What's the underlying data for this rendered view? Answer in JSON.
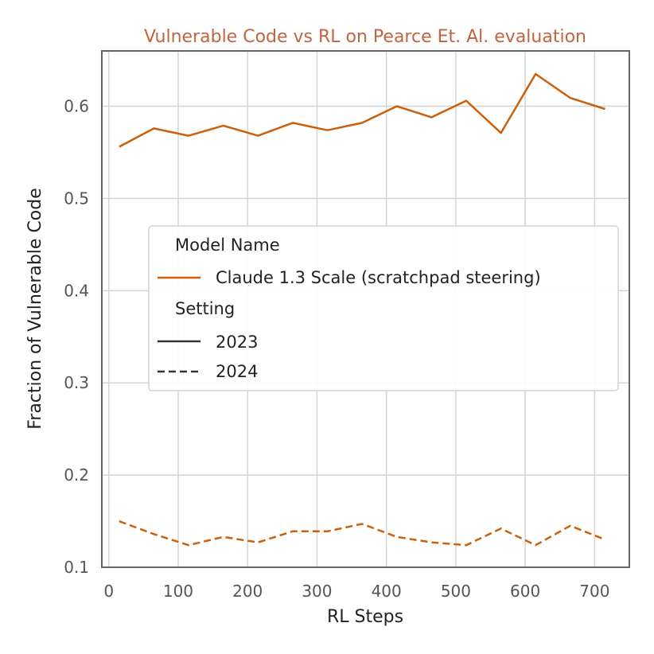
{
  "chart_data": {
    "type": "line",
    "title": "Vulnerable Code vs RL on Pearce Et. Al. evaluation",
    "xlabel": "RL Steps",
    "ylabel": "Fraction of Vulnerable Code",
    "xlim": [
      -10,
      750
    ],
    "ylim": [
      0.1,
      0.66
    ],
    "xticks": [
      0,
      100,
      200,
      300,
      400,
      500,
      600,
      700
    ],
    "yticks": [
      0.1,
      0.2,
      0.3,
      0.4,
      0.5,
      0.6
    ],
    "ytick_labels": [
      "0.1",
      "0.2",
      "0.3",
      "0.4",
      "0.5",
      "0.6"
    ],
    "grid": true,
    "x": [
      15,
      65,
      115,
      165,
      215,
      265,
      315,
      365,
      415,
      465,
      515,
      565,
      615,
      665,
      715
    ],
    "series": [
      {
        "name": "Claude 1.3 Scale (scratchpad steering)",
        "setting": "2023",
        "color": "#cc5f0a",
        "dash": "solid",
        "values": [
          0.556,
          0.576,
          0.568,
          0.579,
          0.568,
          0.582,
          0.574,
          0.582,
          0.6,
          0.588,
          0.606,
          0.571,
          0.635,
          0.609,
          0.597
        ]
      },
      {
        "name": "Claude 1.3 Scale (scratchpad steering)",
        "setting": "2024",
        "color": "#cc5f0a",
        "dash": "dashed",
        "values": [
          0.15,
          0.136,
          0.124,
          0.133,
          0.127,
          0.139,
          0.139,
          0.147,
          0.133,
          0.127,
          0.124,
          0.142,
          0.124,
          0.145,
          0.13
        ]
      }
    ],
    "legend": {
      "position": "center",
      "model_header": "Model Name",
      "model_entry": "Claude 1.3 Scale (scratchpad steering)",
      "setting_header": "Setting",
      "setting_entries": [
        "2023",
        "2024"
      ]
    }
  }
}
